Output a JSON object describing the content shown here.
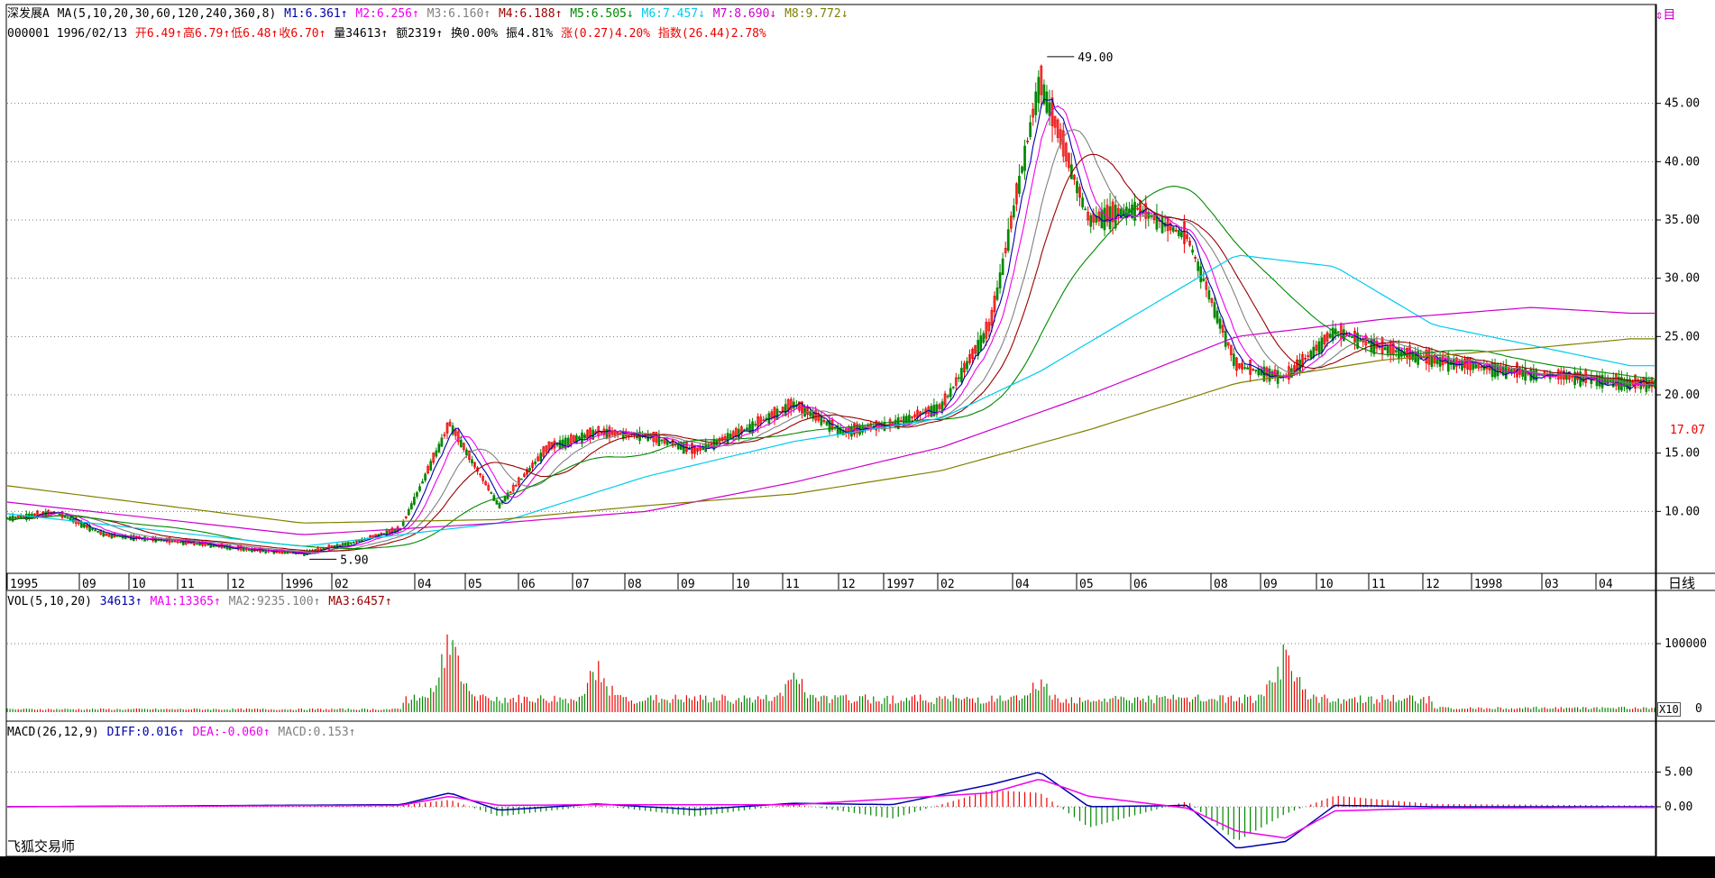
{
  "header": {
    "line1": [
      {
        "t": "深发展A",
        "c": "#000000"
      },
      {
        "t": " MA(5,10,20,30,60,120,240,360,8) ",
        "c": "#000000"
      },
      {
        "t": "M1:6.361↑",
        "c": "#0000aa"
      },
      {
        "t": " M2:6.256↑",
        "c": "#ee00ee"
      },
      {
        "t": " M3:6.160↑",
        "c": "#808080"
      },
      {
        "t": " M4:6.188↑",
        "c": "#990000"
      },
      {
        "t": " M5:6.505↓",
        "c": "#008800"
      },
      {
        "t": " M6:7.457↓",
        "c": "#00ccee"
      },
      {
        "t": " M7:8.690↓",
        "c": "#cc00cc"
      },
      {
        "t": " M8:9.772↓",
        "c": "#808000"
      }
    ],
    "line2": [
      {
        "t": "000001 1996/02/13 ",
        "c": "#000000"
      },
      {
        "t": "开6.49↑",
        "c": "#ee0000"
      },
      {
        "t": "高6.79↑",
        "c": "#ee0000"
      },
      {
        "t": "低6.48↑",
        "c": "#ee0000"
      },
      {
        "t": "收6.70↑",
        "c": "#ee0000"
      },
      {
        "t": " 量34613↑",
        "c": "#000000"
      },
      {
        "t": " 额2319↑",
        "c": "#000000"
      },
      {
        "t": " 换0.00%",
        "c": "#000000"
      },
      {
        "t": " 振4.81%",
        "c": "#000000"
      },
      {
        "t": " 涨(0.27)4.20%",
        "c": "#ee0000"
      },
      {
        "t": " 指数(26.44)2.78%",
        "c": "#ee0000"
      }
    ]
  },
  "vol_header": [
    {
      "t": "VOL(5,10,20) ",
      "c": "#000000"
    },
    {
      "t": "34613↑",
      "c": "#0000aa"
    },
    {
      "t": " MA1:13365↑",
      "c": "#ee00ee"
    },
    {
      "t": " MA2:9235.100↑",
      "c": "#808080"
    },
    {
      "t": " MA3:6457↑",
      "c": "#990000"
    }
  ],
  "macd_header": [
    {
      "t": "MACD(26,12,9) ",
      "c": "#000000"
    },
    {
      "t": "DIFF:0.016↑",
      "c": "#0000aa"
    },
    {
      "t": " DEA:-0.060↑",
      "c": "#ee00ee"
    },
    {
      "t": " MACD:0.153↑",
      "c": "#808080"
    }
  ],
  "app_label": "飞狐交易师",
  "corner_icons": "⇕目",
  "day_label": "日线",
  "x10_label": "X10",
  "vol_zero": "0",
  "colors": {
    "up": "#ee0000",
    "down": "#008800",
    "grid": "#7a7a7a",
    "ma5": "#0000aa",
    "ma10": "#ee00ee",
    "ma20": "#808080",
    "ma30": "#990000",
    "ma60": "#008800",
    "ma120": "#00ccee",
    "ma240": "#cc00cc",
    "ma360": "#808000"
  },
  "chart_data": [
    {
      "type": "candlestick",
      "title": "深发展A",
      "y_ticks": [
        "45.00",
        "40.00",
        "35.00",
        "30.00",
        "25.00",
        "20.00",
        "15.00",
        "10.00"
      ],
      "y_tick_values": [
        45,
        40,
        35,
        30,
        25,
        20,
        15,
        10
      ],
      "ylim": [
        5,
        50
      ],
      "current_price": "17.07",
      "annotations": [
        {
          "label": "49.00",
          "x": "1997-05",
          "y": 49.0
        },
        {
          "label": "5.90",
          "x": "1996-02",
          "y": 5.9
        }
      ],
      "x_labels": [
        "1995",
        "09",
        "10",
        "11",
        "12",
        "1996",
        "02",
        "04",
        "05",
        "06",
        "07",
        "08",
        "09",
        "10",
        "11",
        "12",
        "1997",
        "02",
        "04",
        "05",
        "06",
        "08",
        "09",
        "10",
        "11",
        "12",
        "1998",
        "03",
        "04"
      ],
      "price_path": [
        [
          "1995-08",
          9.4
        ],
        [
          "1995-09",
          9.9
        ],
        [
          "1995-10",
          8.0
        ],
        [
          "1995-11",
          7.6
        ],
        [
          "1995-12",
          7.2
        ],
        [
          "1996-01",
          6.7
        ],
        [
          "1996-02",
          6.4
        ],
        [
          "1996-03",
          7.3
        ],
        [
          "1996-04",
          8.5
        ],
        [
          "1996-05",
          17.5
        ],
        [
          "1996-06",
          10.5
        ],
        [
          "1996-07",
          15.5
        ],
        [
          "1996-08",
          16.8
        ],
        [
          "1996-09",
          16.5
        ],
        [
          "1996-10",
          15.2
        ],
        [
          "1996-11",
          17.0
        ],
        [
          "1996-12",
          19.2
        ],
        [
          "1997-01",
          16.8
        ],
        [
          "1997-02",
          17.5
        ],
        [
          "1997-03",
          19.0
        ],
        [
          "1997-04",
          26.0
        ],
        [
          "1997-05",
          47.0
        ],
        [
          "1997-06",
          35.0
        ],
        [
          "1997-07",
          36.0
        ],
        [
          "1997-08",
          33.5
        ],
        [
          "1997-09",
          22.5
        ],
        [
          "1997-10",
          21.5
        ],
        [
          "1997-11",
          25.5
        ],
        [
          "1997-12",
          24.0
        ],
        [
          "1998-01",
          23.0
        ],
        [
          "1998-03",
          21.8
        ],
        [
          "1998-04",
          21.5
        ],
        [
          "1998-05",
          21.0
        ]
      ],
      "series": [
        {
          "name": "M6",
          "values": [
            [
              "1995-08",
              9.8
            ],
            [
              "1996-02",
              7.0
            ],
            [
              "1996-06",
              9.0
            ],
            [
              "1996-09",
              13.0
            ],
            [
              "1996-12",
              16.0
            ],
            [
              "1997-03",
              18.0
            ],
            [
              "1997-05",
              22.0
            ],
            [
              "1997-07",
              27.0
            ],
            [
              "1997-09",
              32.0
            ],
            [
              "1997-11",
              31.0
            ],
            [
              "1998-01",
              26.0
            ],
            [
              "1998-05",
              22.5
            ]
          ]
        },
        {
          "name": "M7",
          "values": [
            [
              "1995-08",
              10.8
            ],
            [
              "1996-02",
              8.0
            ],
            [
              "1996-06",
              9.0
            ],
            [
              "1996-09",
              10.0
            ],
            [
              "1996-12",
              12.5
            ],
            [
              "1997-03",
              15.5
            ],
            [
              "1997-06",
              20.0
            ],
            [
              "1997-09",
              25.0
            ],
            [
              "1997-12",
              26.5
            ],
            [
              "1998-03",
              27.5
            ],
            [
              "1998-05",
              27.0
            ]
          ]
        },
        {
          "name": "M8",
          "values": [
            [
              "1995-08",
              12.2
            ],
            [
              "1996-02",
              9.0
            ],
            [
              "1996-06",
              9.3
            ],
            [
              "1996-09",
              10.5
            ],
            [
              "1996-12",
              11.5
            ],
            [
              "1997-03",
              13.5
            ],
            [
              "1997-06",
              17.0
            ],
            [
              "1997-09",
              21.0
            ],
            [
              "1997-12",
              23.0
            ],
            [
              "1998-03",
              24.0
            ],
            [
              "1998-05",
              24.8
            ]
          ]
        }
      ]
    },
    {
      "type": "bar",
      "title": "VOL(5,10,20)",
      "y_ticks": [
        "100000"
      ],
      "y_tick_values": [
        100000
      ],
      "ylim": [
        0,
        150000
      ],
      "peaks": [
        [
          "1996-05",
          130000
        ],
        [
          "1996-08",
          80000
        ],
        [
          "1996-12",
          70000
        ],
        [
          "1997-05",
          60000
        ],
        [
          "1997-10",
          115000
        ]
      ]
    },
    {
      "type": "line",
      "title": "MACD(26,12,9)",
      "y_ticks": [
        "5.00",
        "0.00"
      ],
      "y_tick_values": [
        5,
        0
      ],
      "ylim": [
        -6.5,
        10
      ],
      "diff": [
        [
          "1995-08",
          0.0
        ],
        [
          "1996-04",
          0.3
        ],
        [
          "1996-05",
          2.0
        ],
        [
          "1996-06",
          -0.5
        ],
        [
          "1996-08",
          0.4
        ],
        [
          "1996-10",
          -0.4
        ],
        [
          "1996-12",
          0.5
        ],
        [
          "1997-02",
          0.3
        ],
        [
          "1997-04",
          3.2
        ],
        [
          "1997-05",
          5.0
        ],
        [
          "1997-06",
          0.0
        ],
        [
          "1997-08",
          0.2
        ],
        [
          "1997-09",
          -6.0
        ],
        [
          "1997-10",
          -5.0
        ],
        [
          "1997-11",
          0.2
        ],
        [
          "1998-01",
          0.0
        ],
        [
          "1998-05",
          0.0
        ]
      ],
      "dea": [
        [
          "1995-08",
          0.0
        ],
        [
          "1996-04",
          0.2
        ],
        [
          "1996-05",
          1.5
        ],
        [
          "1996-06",
          0.2
        ],
        [
          "1996-08",
          0.3
        ],
        [
          "1996-12",
          0.3
        ],
        [
          "1997-04",
          2.0
        ],
        [
          "1997-05",
          4.0
        ],
        [
          "1997-06",
          1.5
        ],
        [
          "1997-08",
          -0.2
        ],
        [
          "1997-09",
          -3.5
        ],
        [
          "1997-10",
          -4.5
        ],
        [
          "1997-11",
          -0.6
        ],
        [
          "1998-01",
          -0.2
        ],
        [
          "1998-05",
          -0.1
        ]
      ]
    }
  ]
}
